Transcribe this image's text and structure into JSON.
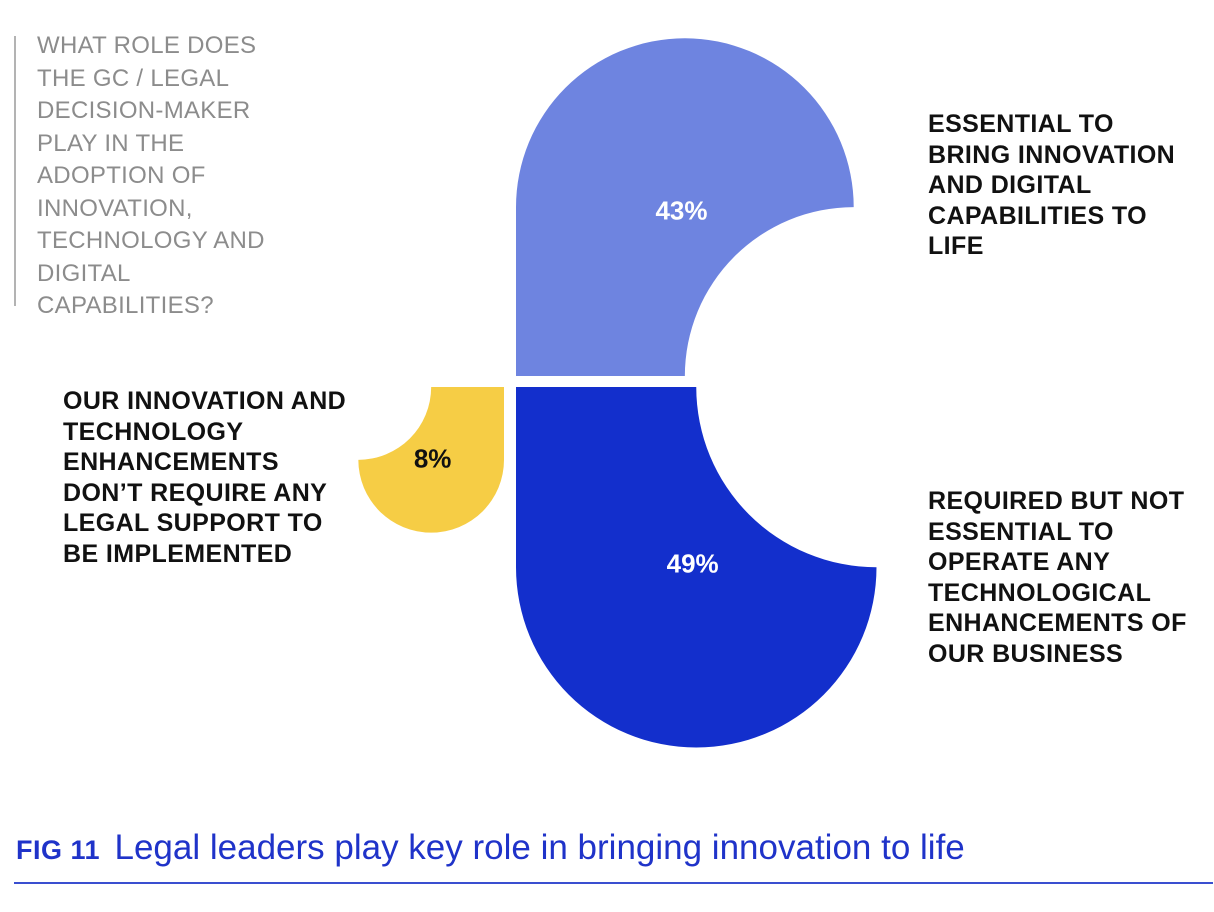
{
  "question": "WHAT ROLE DOES THE GC / LEGAL DECISION-MAKER PLAY IN THE ADOPTION OF INNOVATION, TECHNOLOGY AND DIGITAL CAPABILITIES?",
  "caption": {
    "tag": "FIG 11",
    "title": "Legal leaders play key role in bringing innovation to life"
  },
  "chart_data": {
    "type": "pie",
    "title": "",
    "unit": "%",
    "slices": [
      {
        "label": "ESSENTIAL TO BRING INNOVATION AND DIGITAL CAPABILITIES TO LIFE",
        "value": 43,
        "value_label": "43%",
        "color": "#6e84e0"
      },
      {
        "label": "REQUIRED BUT NOT ESSENTIAL TO OPERATE ANY TECHNOLOGICAL ENHANCEMENTS OF OUR BUSINESS",
        "value": 49,
        "value_label": "49%",
        "color": "#132fcc"
      },
      {
        "label": "OUR INNOVATION AND TECHNOLOGY ENHANCEMENTS DON’T REQUIRE ANY LEGAL SUPPORT TO BE IMPLEMENTED",
        "value": 8,
        "value_label": "8%",
        "color": "#f6cd45"
      }
    ]
  }
}
